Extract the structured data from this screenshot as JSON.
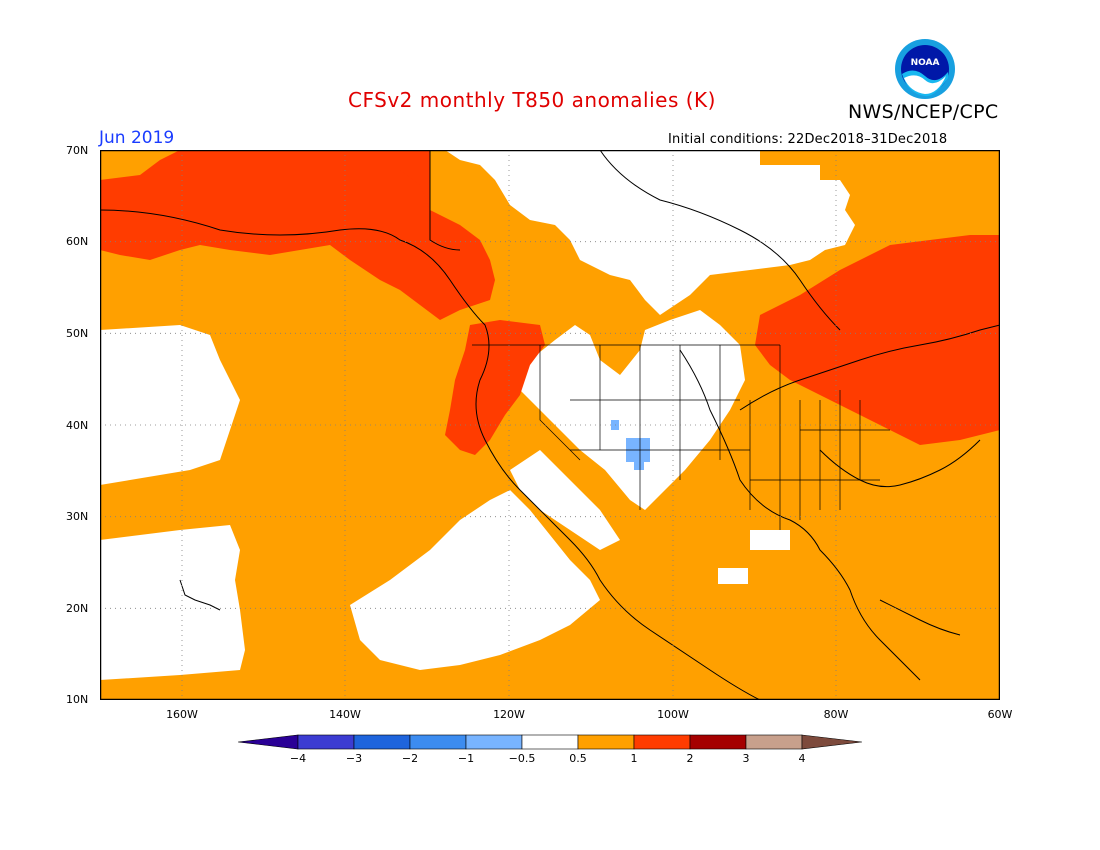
{
  "title": "CFSv2 monthly T850 anomalies (K)",
  "agency": "NWS/NCEP/CPC",
  "logo_text": "NOAA",
  "month": "Jun 2019",
  "initial_conditions": "Initial conditions: 22Dec2018–31Dec2018",
  "colors": {
    "anom_0_5_1": "#ffa000",
    "anom_1_2": "#ff3c00",
    "anom_neg_1_0_5": "#78b4ff",
    "neutral": "#ffffff"
  },
  "lat_labels": [
    "70N",
    "60N",
    "50N",
    "40N",
    "30N",
    "20N",
    "10N"
  ],
  "lon_labels": [
    "160W",
    "140W",
    "120W",
    "100W",
    "80W",
    "60W"
  ],
  "colorbar": {
    "labels": [
      "−4",
      "−3",
      "−2",
      "−1",
      "−0.5",
      "0.5",
      "1",
      "2",
      "3",
      "4"
    ],
    "colors": [
      "#2a0096",
      "#3c3cd2",
      "#1e64dc",
      "#3c8cf0",
      "#78b4ff",
      "#ffffff",
      "#ffa000",
      "#ff3c00",
      "#a50000",
      "#c8a08c",
      "#7d4a3c"
    ]
  }
}
